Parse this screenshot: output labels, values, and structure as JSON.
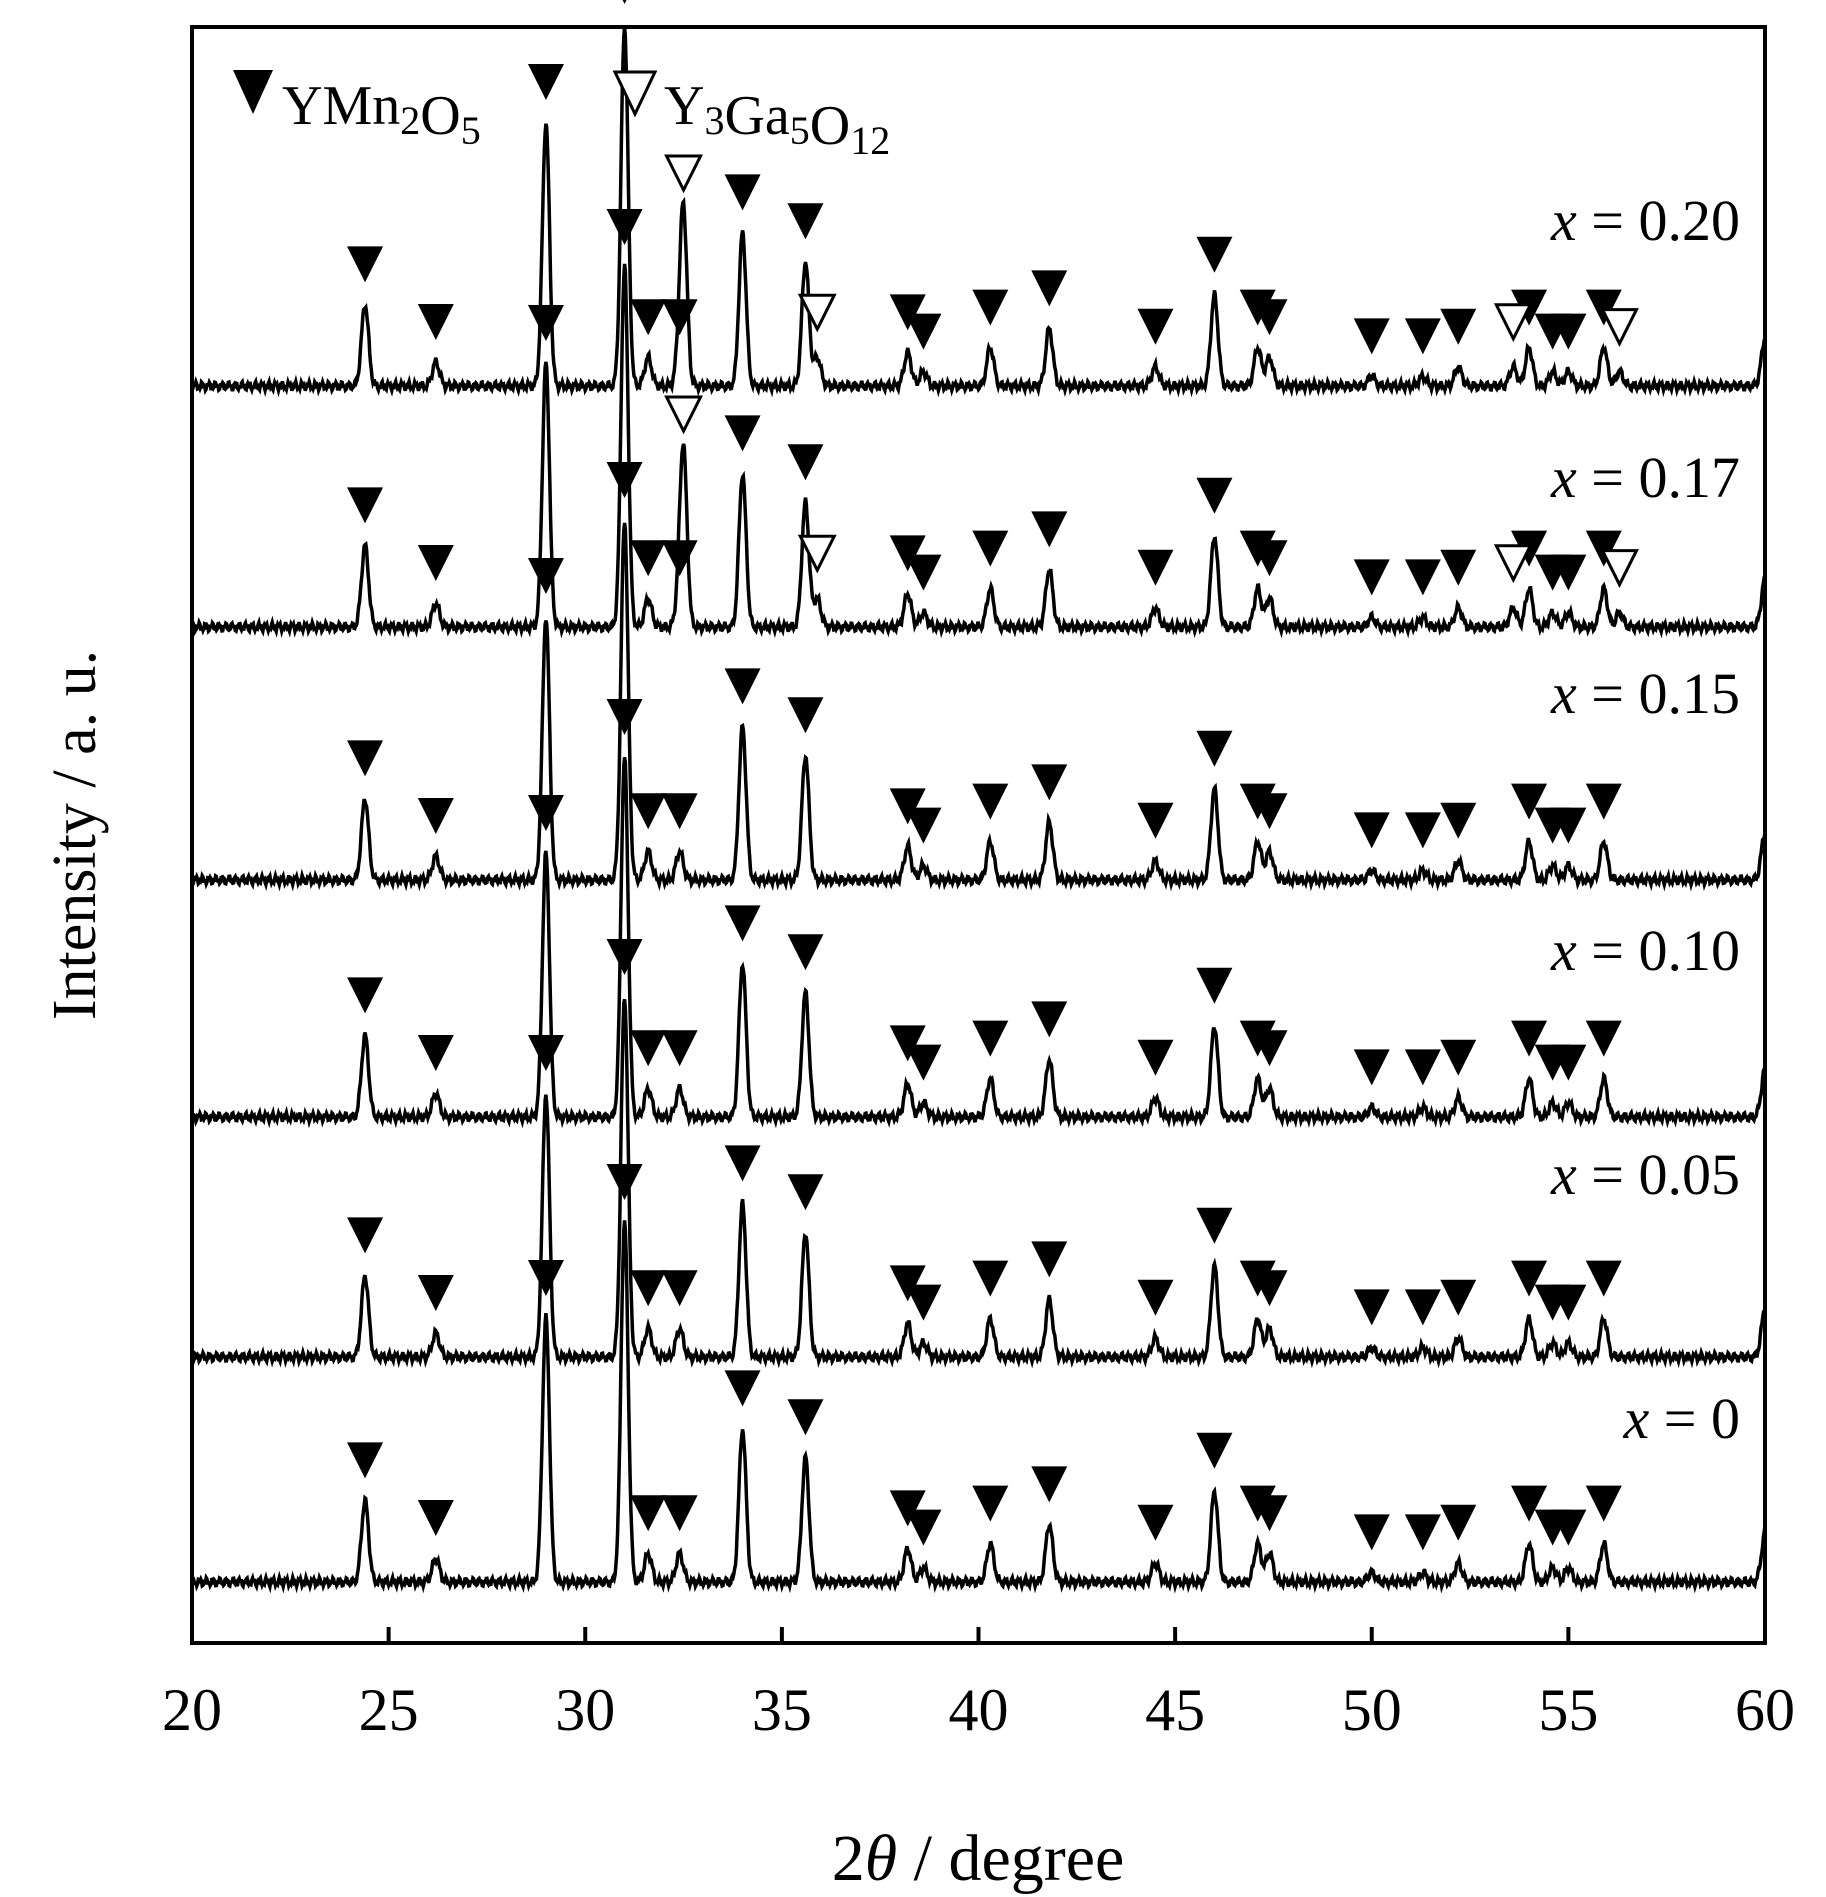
{
  "chart_data": {
    "type": "line",
    "title": "",
    "xlabel": "2θ / degree",
    "xlabel_prefix": "2",
    "xlabel_symbol": "θ",
    "xlabel_suffix": " / degree",
    "ylabel": "Intensity / a. u.",
    "xlim": [
      20,
      60
    ],
    "xticks": [
      20,
      25,
      30,
      35,
      40,
      45,
      50,
      55,
      60
    ],
    "xtick_labels": [
      "20",
      "25",
      "30",
      "35",
      "40",
      "45",
      "50",
      "55",
      "60"
    ],
    "y_ticks_shown": false,
    "legend": {
      "position": "top-left",
      "entries": [
        {
          "marker": "filled-triangle",
          "name": "YMn2O5",
          "parts": [
            [
              "Y",
              false
            ],
            [
              "Mn",
              false
            ],
            [
              "2",
              true
            ],
            [
              "O",
              false
            ],
            [
              "5",
              true
            ]
          ]
        },
        {
          "marker": "open-triangle",
          "name": "Y3Ga5O12",
          "parts": [
            [
              "Y",
              false
            ],
            [
              "3",
              true
            ],
            [
              "Ga",
              false
            ],
            [
              "5",
              true
            ],
            [
              "O",
              false
            ],
            [
              "12",
              true
            ]
          ]
        }
      ]
    },
    "series": [
      {
        "name": "x = 0",
        "label_var": "x",
        "label_value": "= 0",
        "offset": 0,
        "y3g_markers": []
      },
      {
        "name": "x = 0.05",
        "label_var": "x",
        "label_value": "= 0.05",
        "offset": 1.0,
        "y3g_markers": []
      },
      {
        "name": "x = 0.10",
        "label_var": "x",
        "label_value": "= 0.10",
        "offset": 2.0,
        "y3g_markers": []
      },
      {
        "name": "x = 0.15",
        "label_var": "x",
        "label_value": "= 0.15",
        "offset": 3.0,
        "y3g_markers": []
      },
      {
        "name": "x = 0.17",
        "label_var": "x",
        "label_value": "= 0.17",
        "offset": 4.0,
        "y3g_markers": [
          32.5,
          35.9,
          53.6,
          56.3
        ]
      },
      {
        "name": "x = 0.20",
        "label_var": "x",
        "label_value": "= 0.20",
        "offset": 5.0,
        "y3g_markers": [
          32.5,
          35.9,
          53.6,
          56.3
        ]
      }
    ],
    "peaks": [
      {
        "x": 24.4,
        "h": 0.17,
        "ymn": true
      },
      {
        "x": 26.2,
        "h": 0.05,
        "ymn": true
      },
      {
        "x": 29.0,
        "h": 0.55,
        "ymn": true
      },
      {
        "x": 31.0,
        "h": 0.75,
        "ymn": true
      },
      {
        "x": 31.6,
        "h": 0.06,
        "ymn": true
      },
      {
        "x": 32.4,
        "h": 0.06,
        "ymn": true
      },
      {
        "x": 34.0,
        "h": 0.32,
        "ymn": true
      },
      {
        "x": 35.6,
        "h": 0.26,
        "ymn": true
      },
      {
        "x": 38.2,
        "h": 0.07,
        "ymn": true
      },
      {
        "x": 38.6,
        "h": 0.03,
        "ymn": true
      },
      {
        "x": 40.3,
        "h": 0.08,
        "ymn": true
      },
      {
        "x": 41.8,
        "h": 0.12,
        "ymn": true
      },
      {
        "x": 44.5,
        "h": 0.04,
        "ymn": true
      },
      {
        "x": 46.0,
        "h": 0.19,
        "ymn": true
      },
      {
        "x": 47.1,
        "h": 0.08,
        "ymn": true
      },
      {
        "x": 47.4,
        "h": 0.06,
        "ymn": true
      },
      {
        "x": 50.0,
        "h": 0.02,
        "ymn": true
      },
      {
        "x": 51.3,
        "h": 0.02,
        "ymn": true
      },
      {
        "x": 52.2,
        "h": 0.04,
        "ymn": true
      },
      {
        "x": 54.0,
        "h": 0.08,
        "ymn": true
      },
      {
        "x": 54.6,
        "h": 0.03,
        "ymn": true
      },
      {
        "x": 55.0,
        "h": 0.03,
        "ymn": true
      },
      {
        "x": 55.9,
        "h": 0.08,
        "ymn": true
      },
      {
        "x": 60.0,
        "h": 0.1,
        "ymn": false
      }
    ],
    "impurity_peaks_y3ga5o12": [
      {
        "x": 32.5,
        "h": 0.35
      },
      {
        "x": 35.9,
        "h": 0.06
      },
      {
        "x": 53.6,
        "h": 0.04
      },
      {
        "x": 56.3,
        "h": 0.03
      }
    ]
  }
}
